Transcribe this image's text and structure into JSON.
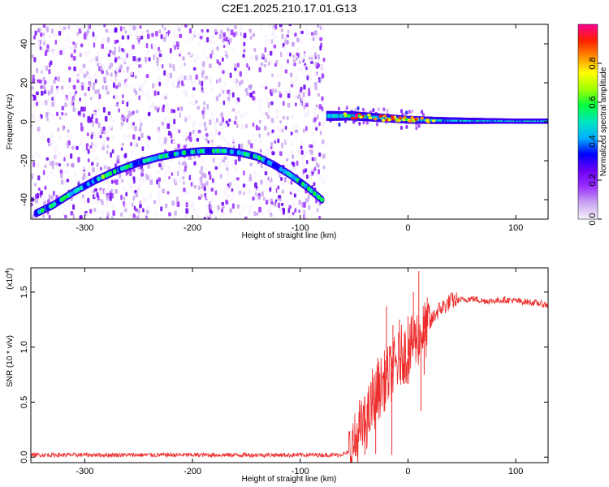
{
  "title": "C2E1.2025.210.17.01.G13",
  "chart_data": [
    {
      "type": "heatmap",
      "xlabel": "Height of straight line (km)",
      "ylabel": "Frequency (Hz)",
      "xlim": [
        -350,
        130
      ],
      "ylim": [
        -50,
        50
      ],
      "xticks": [
        -300,
        -200,
        -100,
        0,
        100
      ],
      "yticks": [
        -40,
        -20,
        0,
        20,
        40
      ],
      "grid": false,
      "colorbar": {
        "label": "Normalized spectral amplitude",
        "range": [
          0,
          1
        ],
        "ticks": [
          "0.0",
          "0.2",
          "0.4",
          "0.6",
          "0.8"
        ],
        "colors": [
          "#f8f0ff",
          "#c9a6f0",
          "#9b30ff",
          "#6a00f5",
          "#0000ff",
          "#00b0ff",
          "#00e5c0",
          "#00ff40",
          "#a0ff00",
          "#ffff00",
          "#ff9000",
          "#ff2000",
          "#ff0090"
        ]
      },
      "features": [
        {
          "name": "arc",
          "x": [
            -345,
            -330,
            -310,
            -290,
            -270,
            -250,
            -230,
            -210,
            -190,
            -170,
            -155,
            -140,
            -125,
            -110,
            -95,
            -80
          ],
          "y": [
            -47,
            -43,
            -36,
            -30,
            -25,
            -21,
            -18,
            -16,
            -15,
            -15,
            -16,
            -18,
            -22,
            -27,
            -33,
            -40
          ],
          "peak_amplitude": 0.55
        },
        {
          "name": "flat_line",
          "x": [
            -75,
            -50,
            -25,
            0,
            25,
            50,
            75,
            100,
            130
          ],
          "y": [
            3,
            3,
            2,
            1,
            0.7,
            0.5,
            0.4,
            0.3,
            0.3
          ],
          "peak_amplitude": 0.95
        }
      ],
      "noise_region_x": [
        -350,
        -78
      ]
    },
    {
      "type": "line",
      "xlabel": "Height of straight line (km)",
      "ylabel": "SNR (10 * v/v)",
      "y_multiplier": "(x10",
      "y_multiplier_exp": "4",
      "y_multiplier_close": ")",
      "xlim": [
        -350,
        130
      ],
      "ylim": [
        -0.05,
        1.72
      ],
      "xticks": [
        -300,
        -200,
        -100,
        0,
        100
      ],
      "yticks": [
        "0.0",
        "0.5",
        "1.0",
        "1.5"
      ],
      "grid": false,
      "series": [
        {
          "color": "#ee2d2d",
          "x": [
            -350,
            -300,
            -250,
            -200,
            -150,
            -100,
            -80,
            -65,
            -55,
            -50,
            -45,
            -40,
            -35,
            -30,
            -25,
            -20,
            -15,
            -10,
            -5,
            0,
            5,
            10,
            15,
            20,
            25,
            30,
            35,
            40,
            50,
            60,
            70,
            80,
            90,
            100,
            110,
            120,
            130
          ],
          "y": [
            0.02,
            0.02,
            0.02,
            0.02,
            0.02,
            0.02,
            0.02,
            0.02,
            0.04,
            0.12,
            0.22,
            0.3,
            0.42,
            0.55,
            0.65,
            0.72,
            0.78,
            0.85,
            0.95,
            0.92,
            1.05,
            1.1,
            1.15,
            1.2,
            1.3,
            1.35,
            1.38,
            1.42,
            1.43,
            1.44,
            1.42,
            1.42,
            1.43,
            1.42,
            1.41,
            1.4,
            1.38
          ],
          "noise_spikes": [
            {
              "x": -45,
              "y": 0.52
            },
            {
              "x": -38,
              "y": 0.48
            },
            {
              "x": -33,
              "y": 0.8
            },
            {
              "x": -28,
              "y": 0.9
            },
            {
              "x": -20,
              "y": 1.37
            },
            {
              "x": -14,
              "y": 1.2
            },
            {
              "x": -8,
              "y": 1.25
            },
            {
              "x": 0,
              "y": 1.28
            },
            {
              "x": 5,
              "y": 1.5
            },
            {
              "x": 10,
              "y": 1.69
            },
            {
              "x": 12,
              "y": 0.42
            },
            {
              "x": 15,
              "y": 0.75
            },
            {
              "x": -48,
              "y": 0.01
            },
            {
              "x": -40,
              "y": 0.02
            },
            {
              "x": -30,
              "y": 0.03
            },
            {
              "x": -15,
              "y": 0.02
            }
          ]
        }
      ]
    }
  ]
}
